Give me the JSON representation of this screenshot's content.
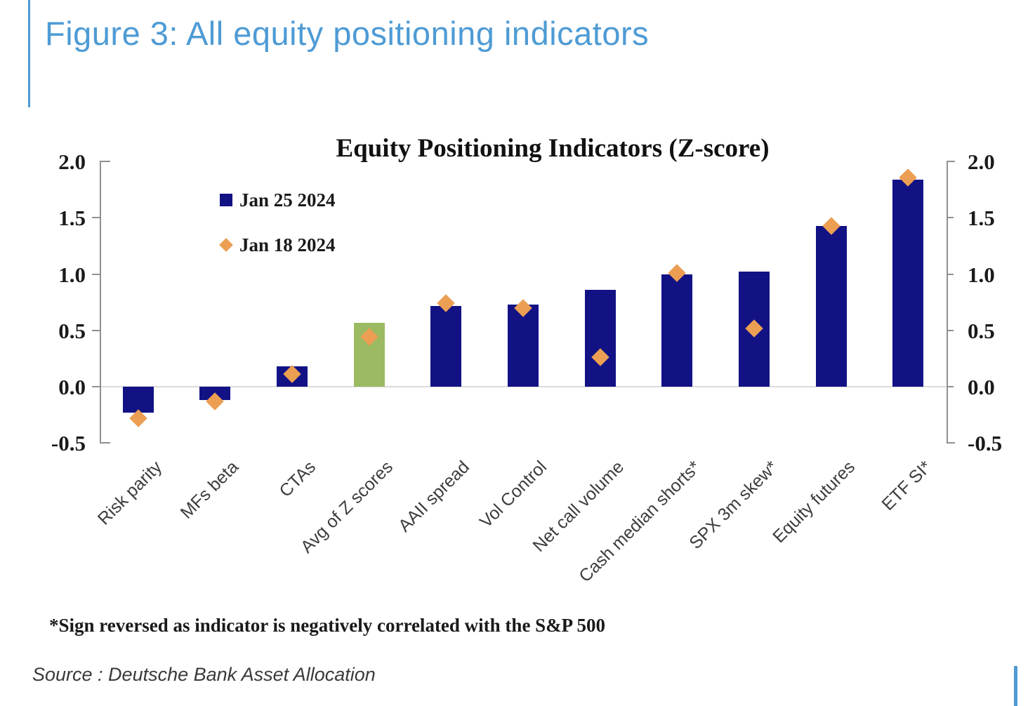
{
  "figure": {
    "title": "Figure 3: All equity positioning indicators"
  },
  "footnote": "*Sign reversed as indicator is negatively correlated with the S&P 500",
  "source": "Source : Deutsche Bank Asset Allocation",
  "colors": {
    "accent_blue": "#4E9BD5",
    "navy": "#121285",
    "green": "#9CBA62",
    "orange": "#EC9E53",
    "axis_gray": "#909090",
    "zero_line_gray": "#DBDBDB",
    "title_blue": "#4E9BD5"
  },
  "chart_data": {
    "type": "bar",
    "title": "Equity Positioning Indicators (Z-score)",
    "xlabel": "",
    "ylabel": "",
    "ylim": [
      -0.5,
      2.0
    ],
    "yticks": [
      2.0,
      1.5,
      1.0,
      0.5,
      0.0,
      -0.5
    ],
    "grid": "zero-line-only",
    "legend_position": "upper-left-inside",
    "dual_axis_labels": true,
    "categories": [
      "Risk parity",
      "MFs beta",
      "CTAs",
      "Avg of Z scores",
      "AAII spread",
      "Vol Control",
      "Net call volume",
      "Cash median shorts*",
      "SPX 3m skew*",
      "Equity futures",
      "ETF SI*"
    ],
    "highlight_index": 3,
    "series": [
      {
        "name": "Jan 25 2024",
        "type": "bar",
        "color": "#121285",
        "highlight_color": "#9CBA62",
        "values": [
          -0.23,
          -0.12,
          0.18,
          0.57,
          0.72,
          0.73,
          0.86,
          1.0,
          1.02,
          1.43,
          1.84
        ]
      },
      {
        "name": "Jan 18 2024",
        "type": "scatter",
        "marker": "diamond",
        "color": "#EC9E53",
        "values": [
          -0.28,
          -0.13,
          0.11,
          0.44,
          0.74,
          0.7,
          0.26,
          1.01,
          0.52,
          1.43,
          1.86
        ]
      }
    ]
  }
}
